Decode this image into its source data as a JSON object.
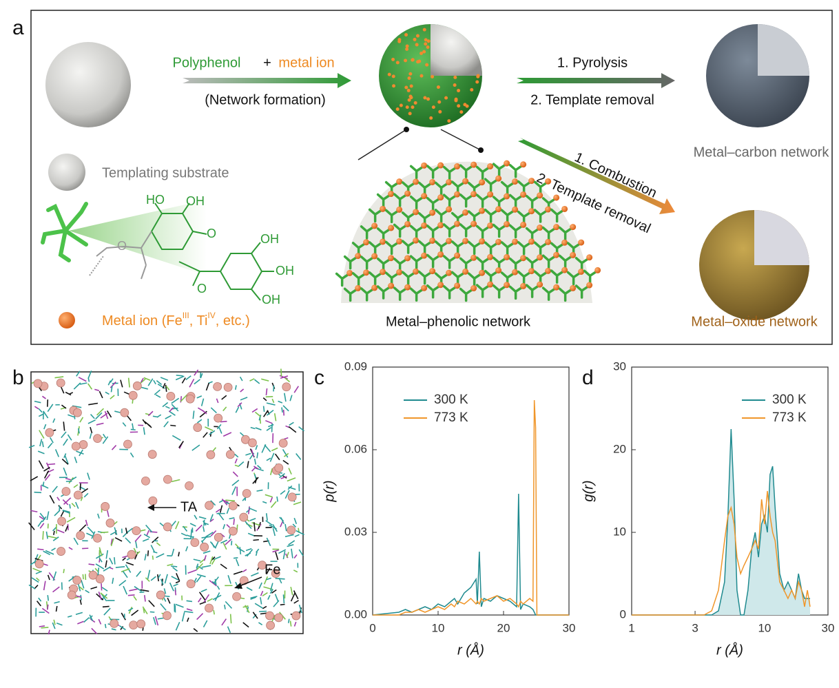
{
  "panel_labels": [
    "a",
    "b",
    "c",
    "d"
  ],
  "panel_a": {
    "reaction": {
      "reagent_1": "Polyphenol",
      "plus": "+",
      "reagent_2": "metal ion",
      "caption": "(Network formation)"
    },
    "route_1": {
      "step_1": "1. Pyrolysis",
      "step_2": "2. Template removal",
      "product": "Metal–carbon network"
    },
    "route_2": {
      "step_1": "1. Combustion",
      "step_2": "2. Template removal",
      "product": "Metal–oxide network"
    },
    "intermediate": "Metal–phenolic network",
    "legend": {
      "substrate": "Templating substrate",
      "metal_ion": [
        "Metal ion (Fe",
        "III",
        ", Ti",
        "IV",
        ", etc.)"
      ]
    },
    "molecule_labels": [
      "HO",
      "OH",
      "O",
      "O",
      "OH",
      "OH",
      "OH",
      "O"
    ]
  },
  "panel_b": {
    "labels": [
      "TA",
      "Fe"
    ]
  },
  "chart_data": [
    {
      "type": "line",
      "xlabel": "r (Å)",
      "ylabel": "p(r)",
      "x": [
        0,
        4,
        5,
        6,
        7,
        8,
        9,
        10,
        11,
        12,
        12.5,
        13,
        14,
        15,
        15.8,
        16,
        16.3,
        16.6,
        17,
        18,
        19,
        20,
        21,
        22,
        22.3,
        22.6,
        23,
        24,
        24.5,
        24.7,
        24.9,
        25.1,
        30
      ],
      "series": [
        {
          "name": "300 K",
          "color": "#1f8a8f",
          "values": [
            0,
            0.001,
            0.002,
            0.001,
            0.002,
            0.003,
            0.002,
            0.004,
            0.003,
            0.005,
            0.006,
            0.004,
            0.008,
            0.01,
            0.013,
            0.004,
            0.023,
            0.003,
            0.006,
            0.005,
            0.007,
            0.006,
            0.005,
            0.003,
            0.044,
            0.002,
            0.004,
            0.003,
            0.002,
            0.001,
            0,
            0,
            0
          ]
        },
        {
          "name": "773 K",
          "color": "#f0962a",
          "values": [
            0,
            0,
            0.001,
            0.001,
            0.002,
            0.001,
            0.002,
            0.003,
            0.002,
            0.004,
            0.003,
            0.005,
            0.004,
            0.006,
            0.004,
            0.005,
            0.004,
            0.006,
            0.005,
            0.006,
            0.007,
            0.005,
            0.006,
            0.004,
            0.003,
            0.005,
            0.004,
            0.006,
            0.005,
            0.078,
            0.068,
            0,
            0
          ]
        }
      ],
      "xlim": [
        0,
        30
      ],
      "xticks": [
        0,
        10,
        20,
        30
      ],
      "ylim": [
        0,
        0.09
      ],
      "yticks": [
        {
          "value": 0,
          "label": "0.00"
        },
        {
          "value": 0.03,
          "label": "0.03"
        },
        {
          "value": 0.06,
          "label": "0.06"
        },
        {
          "value": 0.09,
          "label": "0.09"
        }
      ],
      "legend": "upper left"
    },
    {
      "type": "line",
      "xlabel": "r (Å)",
      "ylabel": "g(r)",
      "xscale": "log",
      "x": [
        1,
        3,
        3.5,
        4,
        4.5,
        5,
        5.3,
        5.6,
        5.9,
        6.2,
        6.6,
        7,
        7.5,
        8,
        8.5,
        9,
        9.5,
        10,
        10.5,
        11,
        11.5,
        12,
        13,
        14,
        15,
        16,
        17,
        18,
        19,
        20,
        21,
        22
      ],
      "series": [
        {
          "name": "300 K",
          "color": "#1f8a8f",
          "fill": "#cfe8ea",
          "values": [
            0,
            0,
            0,
            0,
            0.5,
            4,
            12,
            22.5,
            14,
            3,
            0,
            0,
            3,
            8,
            10,
            7,
            11,
            12,
            10,
            17,
            18,
            13,
            5,
            3,
            4,
            3,
            2,
            5,
            3,
            2,
            2,
            2
          ]
        },
        {
          "name": "773 K",
          "color": "#f0962a",
          "values": [
            0,
            0,
            0,
            0.5,
            3,
            9,
            12,
            13,
            11,
            7,
            5,
            6,
            7,
            8,
            9,
            8,
            14,
            11,
            15,
            12,
            10,
            9,
            4,
            3,
            2,
            3,
            2,
            4,
            3,
            1,
            3,
            1
          ]
        }
      ],
      "xlim": [
        1,
        30
      ],
      "xticks": [
        1,
        3,
        10,
        30
      ],
      "ylim": [
        0,
        30
      ],
      "yticks": [
        0,
        10,
        20,
        30
      ],
      "legend": "upper right"
    }
  ]
}
